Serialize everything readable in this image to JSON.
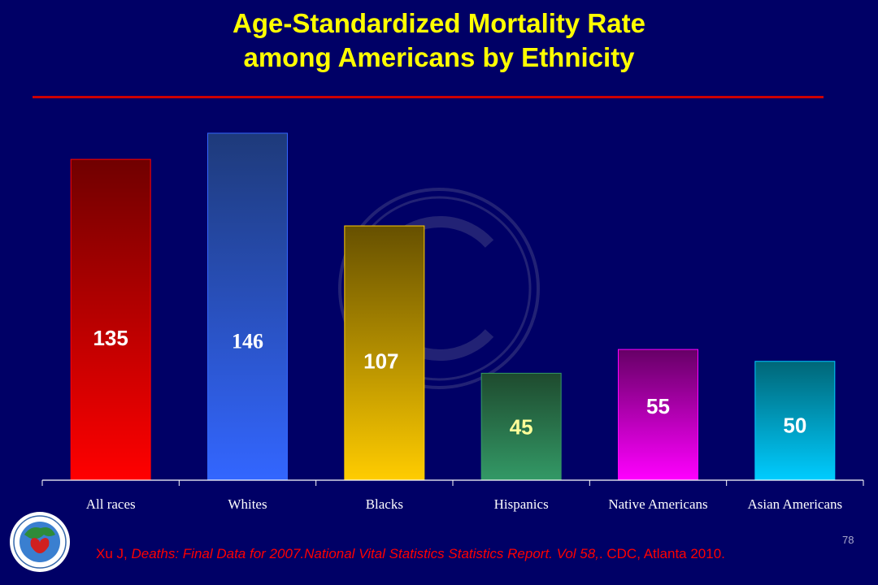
{
  "slide": {
    "title_line1": "Age-Standardized Mortality Rate",
    "title_line2": "among Americans by Ethnicity",
    "source_prefix": "Xu J, ",
    "source_italic": "Deaths: Final Data for 2007.National Vital Statistics Statistics Report. Vol 58,",
    "source_suffix": ". CDC, Atlanta 2010.",
    "page_number": "78",
    "logo_icon": "cadi-research-foundation-logo-icon",
    "watermark_icon": "copyright-watermark-icon"
  },
  "chart_data": {
    "type": "bar",
    "title": "Age-Standardized Mortality Rate among Americans by Ethnicity",
    "categories": [
      "All races",
      "Whites",
      "Blacks",
      "Hispanics",
      "Native Americans",
      "Asian Americans"
    ],
    "values": [
      135,
      146,
      107,
      45,
      55,
      50
    ],
    "data_labels": [
      "135",
      "146",
      "107",
      "45",
      "55",
      "50"
    ],
    "colors": [
      {
        "top": "#700000",
        "bottom": "#FF0000"
      },
      {
        "top": "#1E3A7A",
        "bottom": "#3366FF"
      },
      {
        "top": "#665000",
        "bottom": "#FFCC00"
      },
      {
        "top": "#1E4A2E",
        "bottom": "#339966"
      },
      {
        "top": "#660066",
        "bottom": "#FF00FF"
      },
      {
        "top": "#006677",
        "bottom": "#00CCFF"
      }
    ],
    "xlabel": "",
    "ylabel": "",
    "ylim": [
      0,
      160
    ],
    "grid": false,
    "legend": "none"
  }
}
